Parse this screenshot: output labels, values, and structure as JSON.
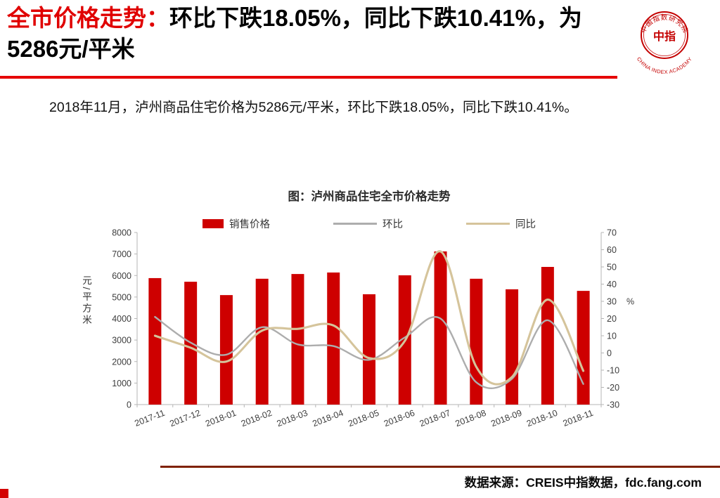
{
  "title": {
    "highlight": "全市价格走势：",
    "rest": "环比下跌18.05%，同比下跌10.41%，为5286元/平米"
  },
  "logo": {
    "ring_text": "中国指数研究院",
    "center": "中指",
    "caption": "CHINA INDEX ACADEMY"
  },
  "intro": "2018年11月，泸州商品住宅价格为5286元/平米，环比下跌18.05%，同比下跌10.41%。",
  "chart": {
    "title": "图：泸州商品住宅全市价格走势"
  },
  "chart_data": {
    "type": "bar",
    "title": "图：泸州商品住宅全市价格走势",
    "categories": [
      "2017-11",
      "2017-12",
      "2018-01",
      "2018-02",
      "2018-03",
      "2018-04",
      "2018-05",
      "2018-06",
      "2018-07",
      "2018-08",
      "2018-09",
      "2018-10",
      "2018-11"
    ],
    "series": [
      {
        "name": "销售价格",
        "kind": "bar",
        "axis": "left",
        "color": "#ce0000",
        "values": [
          5880,
          5710,
          5090,
          5850,
          6070,
          6140,
          5130,
          6010,
          7120,
          5850,
          5360,
          6400,
          5286
        ]
      },
      {
        "name": "环比",
        "kind": "line",
        "axis": "right",
        "color": "#adadad",
        "values": [
          21,
          6,
          -1,
          15,
          5,
          4,
          -4,
          9,
          20,
          -17,
          -15,
          19,
          -18.05
        ]
      },
      {
        "name": "同比",
        "kind": "line",
        "axis": "right",
        "color": "#d5c49b",
        "values": [
          10,
          3,
          -5,
          13,
          14,
          16,
          -3,
          7,
          59,
          -8,
          -14,
          31,
          -10.41
        ]
      }
    ],
    "left_axis": {
      "unit": "元/平方米",
      "min": 0,
      "max": 8000,
      "step": 1000
    },
    "right_axis": {
      "unit": "%",
      "min": -30,
      "max": 70,
      "step": 10
    },
    "legend_position": "top",
    "grid": false
  },
  "footer": {
    "source": "数据来源：CREIS中指数据，fdc.fang.com"
  },
  "colors": {
    "title_red": "#e00000",
    "rule_red": "#e60000",
    "bar_red": "#ce0000",
    "line_gray": "#adadad",
    "line_tan": "#d5c49b",
    "footer_rule": "#7f2100"
  }
}
